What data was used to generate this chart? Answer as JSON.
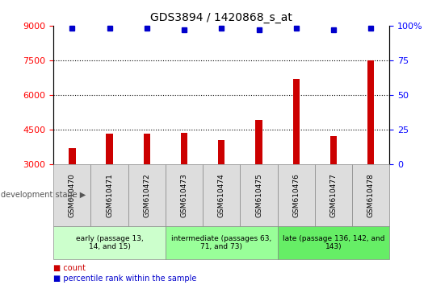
{
  "title": "GDS3894 / 1420868_s_at",
  "samples": [
    "GSM610470",
    "GSM610471",
    "GSM610472",
    "GSM610473",
    "GSM610474",
    "GSM610475",
    "GSM610476",
    "GSM610477",
    "GSM610478"
  ],
  "counts": [
    3700,
    4300,
    4300,
    4350,
    4050,
    4900,
    6700,
    4200,
    7500
  ],
  "percentiles": [
    98,
    98,
    98,
    97,
    98,
    97,
    98,
    97,
    98
  ],
  "ylim_left": [
    3000,
    9000
  ],
  "ylim_right": [
    0,
    100
  ],
  "yticks_left": [
    3000,
    4500,
    6000,
    7500,
    9000
  ],
  "yticks_right": [
    0,
    25,
    50,
    75,
    100
  ],
  "bar_color": "#cc0000",
  "dot_color": "#0000cc",
  "groups": [
    {
      "label": "early (passage 13,\n14, and 15)",
      "start": 0,
      "end": 3,
      "color": "#ccffcc"
    },
    {
      "label": "intermediate (passages 63,\n71, and 73)",
      "start": 3,
      "end": 6,
      "color": "#99ff99"
    },
    {
      "label": "late (passage 136, 142, and\n143)",
      "start": 6,
      "end": 9,
      "color": "#66ee66"
    }
  ],
  "dev_stage_label": "development stage",
  "legend_count_label": "count",
  "legend_pct_label": "percentile rank within the sample",
  "sample_bg_color": "#dddddd",
  "bar_width": 0.18,
  "dot_size": 5,
  "title_fontsize": 10,
  "tick_fontsize": 8,
  "sample_fontsize": 6.5,
  "group_fontsize": 6.5,
  "legend_fontsize": 7
}
